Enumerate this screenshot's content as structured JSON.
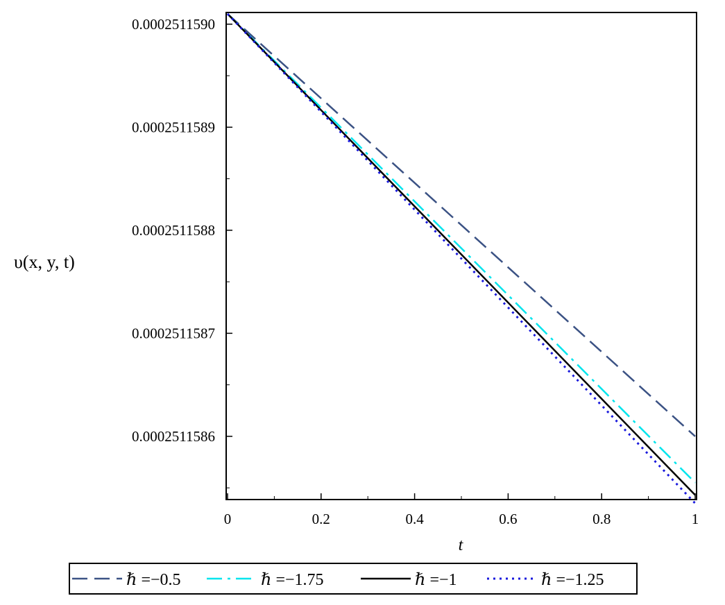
{
  "chart_data": {
    "type": "line",
    "title": "",
    "xlabel": "t",
    "ylabel": "υ(x, y, t)",
    "xlim": [
      0,
      1
    ],
    "ylim": [
      0.00025115854,
      0.00025115901
    ],
    "x_ticks": [
      0,
      0.2,
      0.4,
      0.6,
      0.8,
      1
    ],
    "x_tick_labels": [
      "0",
      "0.2",
      "0.4",
      "0.6",
      "0.8",
      "1"
    ],
    "y_ticks": [
      0.000251159,
      0.0002511589,
      0.0002511588,
      0.0002511587,
      0.0002511586
    ],
    "y_tick_labels": [
      "0.0002511590",
      "0.0002511589",
      "0.0002511588",
      "0.0002511587",
      "0.0002511586"
    ],
    "grid": false,
    "legend_position": "bottom",
    "series": [
      {
        "name": "ℏ =−0.5",
        "color": "#3b5284",
        "dash": "dashed",
        "x": [
          0,
          1
        ],
        "y": [
          0.00025115901,
          0.0002511586
        ]
      },
      {
        "name": "ℏ =−1.75",
        "color": "#00e5ee",
        "dash": "dashdot",
        "x": [
          0,
          1
        ],
        "y": [
          0.00025115901,
          0.000251158555
        ]
      },
      {
        "name": "ℏ =−1",
        "color": "#000000",
        "dash": "solid",
        "x": [
          0,
          1
        ],
        "y": [
          0.00025115901,
          0.000251158543
        ]
      },
      {
        "name": "ℏ =−1.25",
        "color": "#1a1adc",
        "dash": "dotted",
        "x": [
          0,
          1
        ],
        "y": [
          0.00025115901,
          0.000251158535
        ]
      }
    ]
  }
}
